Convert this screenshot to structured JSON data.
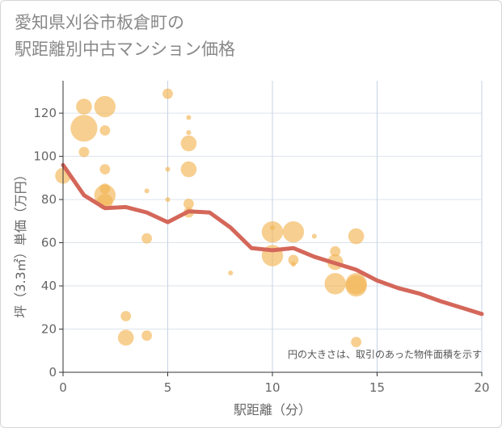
{
  "title": {
    "line1": "愛知県刈谷市板倉町の",
    "line2": "駅距離別中古マンション価格"
  },
  "chart_data": {
    "type": "scatter",
    "title": "愛知県刈谷市板倉町の駅距離別中古マンション価格",
    "xlabel": "駅距離（分）",
    "ylabel": "坪（3.3㎡）単価（万円）",
    "xlim": [
      0,
      20
    ],
    "ylim": [
      0,
      135
    ],
    "x_ticks": [
      0,
      5,
      10,
      15,
      20
    ],
    "y_ticks": [
      0,
      20,
      40,
      60,
      80,
      100,
      120
    ],
    "grid": true,
    "note": "円の大きさは、取引のあった物件面積を示す",
    "colors": {
      "bubble": "#f2b654",
      "line": "#d4675a"
    },
    "scatter_series": {
      "points": [
        {
          "x": 0,
          "y": 91,
          "size": 3
        },
        {
          "x": 1,
          "y": 123,
          "size": 3
        },
        {
          "x": 1,
          "y": 113,
          "size": 5
        },
        {
          "x": 1,
          "y": 102,
          "size": 2
        },
        {
          "x": 2,
          "y": 123,
          "size": 4
        },
        {
          "x": 2,
          "y": 112,
          "size": 2
        },
        {
          "x": 2,
          "y": 94,
          "size": 2
        },
        {
          "x": 2,
          "y": 85,
          "size": 2
        },
        {
          "x": 2,
          "y": 82,
          "size": 4
        },
        {
          "x": 2,
          "y": 79,
          "size": 3
        },
        {
          "x": 3,
          "y": 26,
          "size": 2
        },
        {
          "x": 3,
          "y": 16,
          "size": 3
        },
        {
          "x": 4,
          "y": 84,
          "size": 1
        },
        {
          "x": 4,
          "y": 62,
          "size": 2
        },
        {
          "x": 4,
          "y": 17,
          "size": 2
        },
        {
          "x": 5,
          "y": 129,
          "size": 2
        },
        {
          "x": 5,
          "y": 94,
          "size": 1
        },
        {
          "x": 5,
          "y": 80,
          "size": 1
        },
        {
          "x": 6,
          "y": 118,
          "size": 1
        },
        {
          "x": 6,
          "y": 111,
          "size": 1
        },
        {
          "x": 6,
          "y": 106,
          "size": 3
        },
        {
          "x": 6,
          "y": 94,
          "size": 3
        },
        {
          "x": 6,
          "y": 78,
          "size": 2
        },
        {
          "x": 6,
          "y": 74,
          "size": 2
        },
        {
          "x": 8,
          "y": 46,
          "size": 1
        },
        {
          "x": 10,
          "y": 67,
          "size": 1
        },
        {
          "x": 10,
          "y": 65,
          "size": 4
        },
        {
          "x": 10,
          "y": 54,
          "size": 4
        },
        {
          "x": 11,
          "y": 65,
          "size": 4
        },
        {
          "x": 11,
          "y": 52,
          "size": 2
        },
        {
          "x": 11,
          "y": 50,
          "size": 1
        },
        {
          "x": 12,
          "y": 63,
          "size": 1
        },
        {
          "x": 13,
          "y": 56,
          "size": 2
        },
        {
          "x": 13,
          "y": 51,
          "size": 3
        },
        {
          "x": 13,
          "y": 41,
          "size": 4
        },
        {
          "x": 14,
          "y": 63,
          "size": 3
        },
        {
          "x": 14,
          "y": 41,
          "size": 4
        },
        {
          "x": 14,
          "y": 40,
          "size": 4
        },
        {
          "x": 14,
          "y": 14,
          "size": 2
        }
      ]
    },
    "line_series": {
      "x": [
        0,
        1,
        2,
        3,
        4,
        5,
        6,
        7,
        8,
        9,
        10,
        11,
        12,
        13,
        14,
        15,
        16,
        17,
        18,
        19,
        20
      ],
      "y": [
        96,
        82,
        76,
        76.5,
        74,
        69.5,
        74.5,
        74,
        67,
        57.5,
        56.5,
        57.5,
        53.5,
        50.5,
        47.5,
        42.5,
        39,
        36.5,
        33,
        30,
        27
      ]
    }
  }
}
